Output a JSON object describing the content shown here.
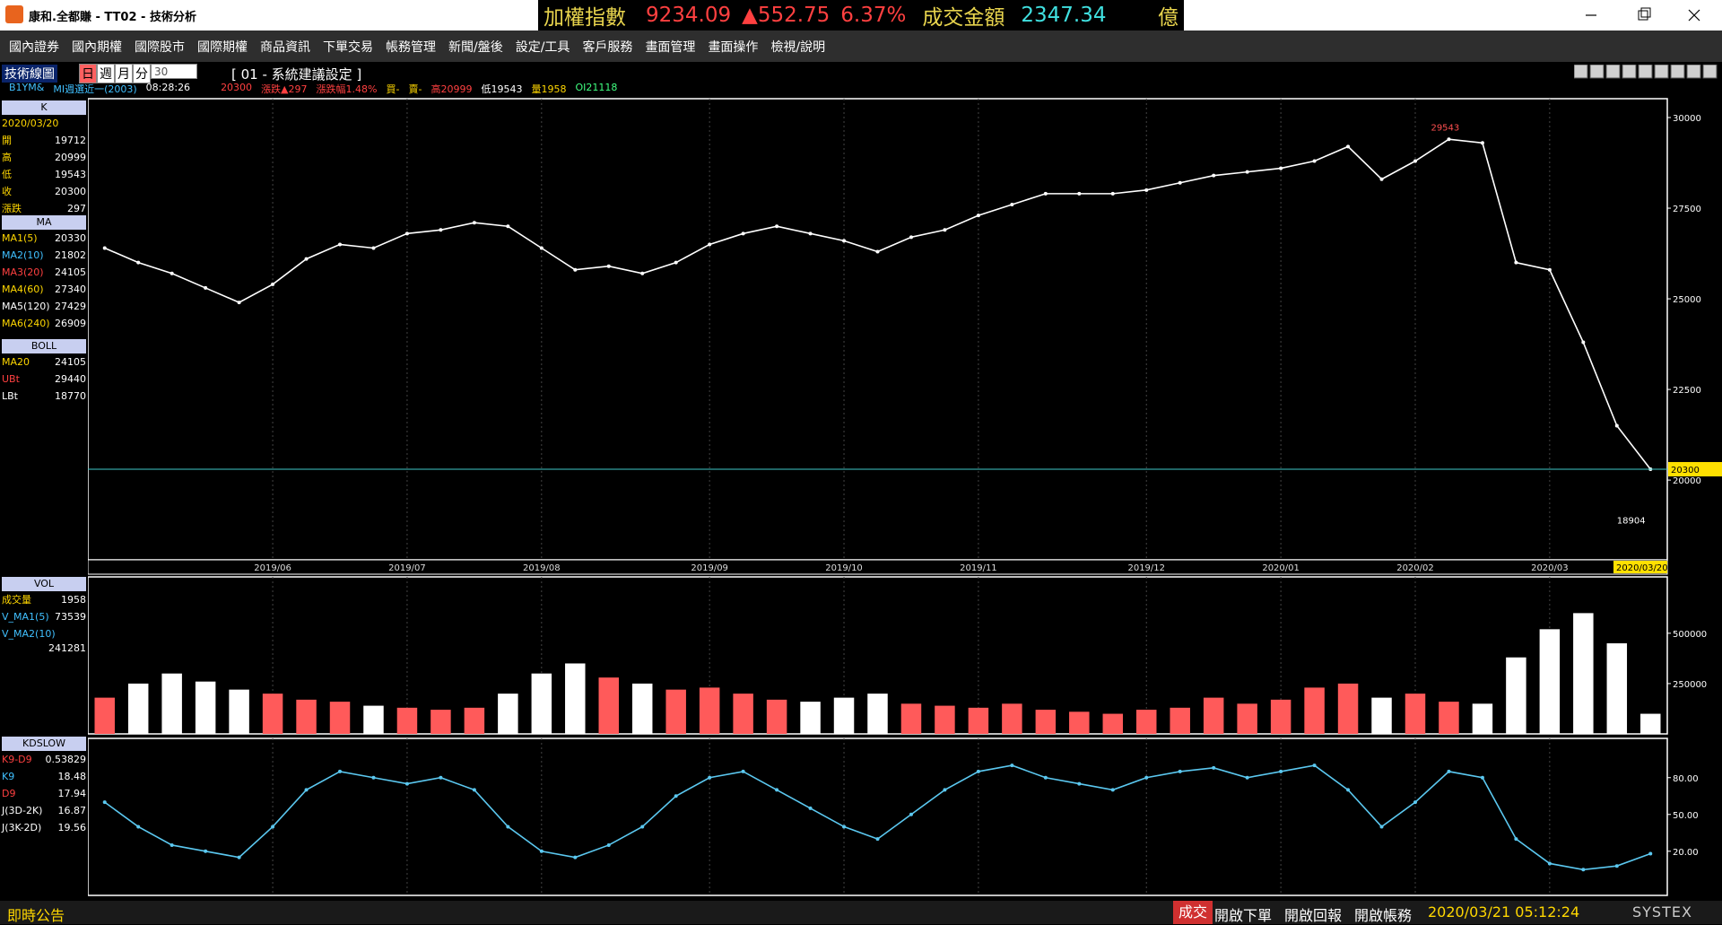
{
  "window": {
    "title": "康和.全都賺 - TT02 - 技術分析"
  },
  "ticker": {
    "name": "加權指數",
    "price": "9234.09",
    "change": "▲552.75",
    "pct": "6.37%",
    "turnover_label": "成交金額",
    "turnover": "2347.34",
    "unit": "億"
  },
  "menu": [
    "國內證券",
    "國內期權",
    "國際股市",
    "國際期權",
    "商品資訊",
    "下單交易",
    "帳務管理",
    "新聞/盤後",
    "設定/工具",
    "客戶服務",
    "畫面管理",
    "畫面操作",
    "檢視/說明"
  ],
  "toolbar": {
    "label": "技術線圖",
    "periods": [
      "日",
      "週",
      "月",
      "分"
    ],
    "minutes": "30",
    "setting": "[ 01 - 系統建議設定 ]"
  },
  "quote": [
    "B1YM&",
    "MI週選近一(2003)",
    "08:28:26",
    "20300",
    "漲跌▲297",
    "漲跌幅1.48%",
    "買-",
    "賣-",
    "高20999",
    "低19543",
    "量1958",
    "OI21118"
  ],
  "legend": [
    {
      "title": "K",
      "date": "2020/03/20",
      "rows": [
        [
          "開",
          "19712"
        ],
        [
          "高",
          "20999"
        ],
        [
          "低",
          "19543"
        ],
        [
          "收",
          "20300"
        ],
        [
          "漲跌",
          "297"
        ]
      ]
    },
    {
      "title": "MA",
      "rows": [
        [
          "MA1(5)",
          "20330"
        ],
        [
          "MA2(10)",
          "21802"
        ],
        [
          "MA3(20)",
          "24105"
        ],
        [
          "MA4(60)",
          "27340"
        ],
        [
          "MA5(120)",
          "27429"
        ],
        [
          "MA6(240)",
          "26909"
        ]
      ]
    },
    {
      "title": "BOLL",
      "rows": [
        [
          "MA20",
          "24105"
        ],
        [
          "UBt",
          "29440"
        ],
        [
          "LBt",
          "18770"
        ]
      ]
    },
    {
      "title": "VOL",
      "rows": [
        [
          "成交量",
          "1958"
        ],
        [
          "V_MA1(5)",
          "73539"
        ],
        [
          "V_MA2(10)",
          ""
        ]
      ],
      "extra": "241281"
    },
    {
      "title": "KDSLOW",
      "rows": [
        [
          "K9-D9",
          "0.53829"
        ],
        [
          "K9",
          "18.48"
        ],
        [
          "D9",
          "17.94"
        ],
        [
          "J(3D-2K)",
          "16.87"
        ],
        [
          "J(3K-2D)",
          "19.56"
        ]
      ]
    }
  ],
  "chart_data": [
    {
      "type": "line",
      "color": "#ffffff",
      "categories": [
        null,
        null,
        null,
        null,
        null,
        "2019/06",
        null,
        null,
        null,
        "2019/07",
        null,
        null,
        null,
        "2019/08",
        null,
        null,
        null,
        null,
        "2019/09",
        null,
        null,
        null,
        "2019/10",
        null,
        null,
        null,
        "2019/11",
        null,
        null,
        null,
        null,
        "2019/12",
        null,
        null,
        null,
        "2020/01",
        null,
        null,
        null,
        "2020/02",
        null,
        null,
        null,
        "2020/03",
        null,
        null,
        null
      ],
      "values": [
        26400,
        26000,
        25700,
        25300,
        24900,
        25400,
        26100,
        26500,
        26400,
        26800,
        26900,
        27100,
        27000,
        26400,
        25800,
        25900,
        25700,
        26000,
        26500,
        26800,
        27000,
        26800,
        26600,
        26300,
        26700,
        26900,
        27300,
        27600,
        27900,
        27900,
        27900,
        28000,
        28200,
        28400,
        28500,
        28600,
        28800,
        29200,
        28300,
        28800,
        29400,
        29300,
        26000,
        25800,
        23800,
        21500,
        20300
      ],
      "ylim": [
        17800,
        30520
      ],
      "yticks": [
        20000,
        22500,
        25000,
        27500,
        30000
      ],
      "high": 29543,
      "low": 18904,
      "last": 20300,
      "last_date": "2020/03/20"
    },
    {
      "type": "bar",
      "up_color": "#ff5a5a",
      "down_color": "#ffffff",
      "values": [
        180000,
        250000,
        300000,
        260000,
        220000,
        200000,
        170000,
        160000,
        140000,
        130000,
        120000,
        130000,
        200000,
        300000,
        350000,
        280000,
        250000,
        220000,
        230000,
        200000,
        170000,
        160000,
        180000,
        200000,
        150000,
        140000,
        130000,
        150000,
        120000,
        110000,
        100000,
        120000,
        130000,
        180000,
        150000,
        170000,
        230000,
        250000,
        180000,
        200000,
        160000,
        150000,
        380000,
        520000,
        600000,
        450000,
        100000
      ],
      "ylim": [
        0,
        780000
      ],
      "yticks": [
        250000,
        500000
      ]
    },
    {
      "type": "line",
      "color": "#5bc8f0",
      "values": [
        60,
        40,
        25,
        20,
        15,
        40,
        70,
        85,
        80,
        75,
        80,
        70,
        40,
        20,
        15,
        25,
        40,
        65,
        80,
        85,
        70,
        55,
        40,
        30,
        50,
        70,
        85,
        90,
        80,
        75,
        70,
        80,
        85,
        88,
        80,
        85,
        90,
        70,
        40,
        60,
        85,
        80,
        30,
        10,
        5,
        8,
        18
      ],
      "ylim": [
        -16,
        112
      ],
      "yticks": [
        {
          "value": 20,
          "label": "20.00"
        },
        {
          "value": 50,
          "label": "50.00"
        },
        {
          "value": 80,
          "label": "80.00"
        }
      ]
    }
  ],
  "status": {
    "notice": "即時公告",
    "trade": "成交",
    "buttons": [
      "開啟下單",
      "開啟回報",
      "開啟帳務"
    ],
    "time": "2020/03/21 05:12:24",
    "brand": "SYSTEX"
  }
}
